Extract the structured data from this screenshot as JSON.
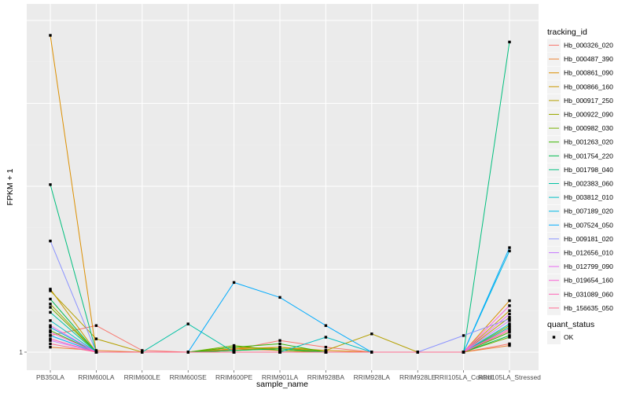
{
  "chart_data": {
    "type": "line",
    "xlabel": "sample_name",
    "ylabel": "FPKM + 1",
    "y_tick_labels": [
      "1"
    ],
    "ylim": [
      1,
      21
    ],
    "y_scale": "linear (only the value 1 is labeled)",
    "grid": true,
    "legend_position": "right",
    "categories": [
      "PB350LA",
      "RRIM600LA",
      "RRIM600LE",
      "RRIM600SE",
      "RRIM600PE",
      "RRIM901LA",
      "RRIM928BA",
      "RRIM928LA",
      "RRIM928LE",
      "RRII105LA_Control",
      "RRII105LA_Stressed"
    ],
    "legend_series_title": "tracking_id",
    "legend_shape_title": "quant_status",
    "legend_shape_entries": [
      "OK"
    ],
    "series": [
      {
        "name": "Hb_000326_020",
        "color": "#F8766D",
        "values": [
          2.0,
          2.6,
          1.1,
          1.0,
          1.15,
          1.7,
          1.3,
          1.0,
          1.0,
          1.0,
          1.5
        ]
      },
      {
        "name": "Hb_000487_390",
        "color": "#EB8335",
        "values": [
          1.3,
          1.1,
          1.0,
          1.0,
          1.2,
          1.1,
          1.0,
          1.0,
          1.0,
          1.0,
          1.4
        ]
      },
      {
        "name": "Hb_000861_090",
        "color": "#DC8F00",
        "values": [
          20.1,
          1.0,
          1.0,
          1.0,
          1.2,
          1.3,
          1.1,
          1.0,
          1.0,
          1.0,
          4.1
        ]
      },
      {
        "name": "Hb_000866_160",
        "color": "#C99800",
        "values": [
          4.8,
          1.0,
          1.0,
          1.0,
          1.1,
          1.3,
          1.0,
          1.0,
          1.0,
          1.0,
          3.5
        ]
      },
      {
        "name": "Hb_000917_250",
        "color": "#B4A000",
        "values": [
          4.7,
          1.8,
          1.0,
          1.0,
          1.3,
          1.2,
          1.1,
          2.1,
          1.0,
          1.0,
          3.1
        ]
      },
      {
        "name": "Hb_000922_090",
        "color": "#9AA800",
        "values": [
          3.9,
          1.0,
          1.0,
          1.0,
          1.1,
          1.2,
          1.0,
          1.0,
          1.0,
          1.0,
          2.6
        ]
      },
      {
        "name": "Hb_000982_030",
        "color": "#76AF00",
        "values": [
          3.7,
          1.0,
          1.0,
          1.0,
          1.4,
          1.1,
          1.0,
          1.0,
          1.0,
          1.0,
          1.9
        ]
      },
      {
        "name": "Hb_001263_020",
        "color": "#39B600",
        "values": [
          2.3,
          1.0,
          1.0,
          1.0,
          1.3,
          1.5,
          1.0,
          1.0,
          1.0,
          1.0,
          2.2
        ]
      },
      {
        "name": "Hb_001754_220",
        "color": "#00BB4E",
        "values": [
          4.2,
          1.0,
          1.0,
          1.0,
          1.1,
          1.2,
          1.0,
          1.0,
          1.0,
          1.0,
          2.0
        ]
      },
      {
        "name": "Hb_001798_040",
        "color": "#00BF7D",
        "values": [
          11.1,
          1.0,
          1.0,
          1.0,
          1.0,
          1.0,
          1.0,
          1.0,
          1.0,
          1.0,
          19.7
        ]
      },
      {
        "name": "Hb_002383_060",
        "color": "#00C1A3",
        "values": [
          3.4,
          1.0,
          1.0,
          2.7,
          1.0,
          1.0,
          1.0,
          1.0,
          1.0,
          1.0,
          2.5
        ]
      },
      {
        "name": "Hb_003812_010",
        "color": "#00BFC4",
        "values": [
          2.9,
          1.0,
          1.0,
          1.0,
          1.0,
          1.0,
          1.9,
          1.0,
          1.0,
          1.0,
          2.7
        ]
      },
      {
        "name": "Hb_007189_020",
        "color": "#00B8E5",
        "values": [
          2.5,
          1.0,
          1.0,
          1.0,
          1.0,
          1.0,
          1.0,
          1.0,
          1.0,
          1.0,
          7.1
        ]
      },
      {
        "name": "Hb_007524_050",
        "color": "#00ABFD",
        "values": [
          2.0,
          1.0,
          1.0,
          1.0,
          5.2,
          4.3,
          2.6,
          1.0,
          1.0,
          1.0,
          7.3
        ]
      },
      {
        "name": "Hb_009181_020",
        "color": "#8B93FF",
        "values": [
          7.7,
          1.0,
          1.0,
          1.0,
          1.0,
          1.0,
          1.0,
          1.0,
          1.0,
          2.0,
          3.0
        ]
      },
      {
        "name": "Hb_012656_010",
        "color": "#C77CFF",
        "values": [
          1.7,
          1.0,
          1.0,
          1.0,
          1.0,
          1.0,
          1.0,
          1.0,
          1.0,
          1.0,
          2.9
        ]
      },
      {
        "name": "Hb_012799_090",
        "color": "#E86BF3",
        "values": [
          2.6,
          1.0,
          1.0,
          1.0,
          1.0,
          1.0,
          1.0,
          1.0,
          1.0,
          1.0,
          3.3
        ]
      },
      {
        "name": "Hb_019654_160",
        "color": "#FA62D5",
        "values": [
          2.2,
          1.0,
          1.0,
          1.0,
          1.0,
          1.0,
          1.0,
          1.0,
          1.0,
          1.0,
          3.8
        ]
      },
      {
        "name": "Hb_031089_060",
        "color": "#FF63B6",
        "values": [
          1.8,
          1.0,
          1.0,
          1.0,
          1.0,
          1.0,
          1.0,
          1.0,
          1.0,
          1.0,
          2.4
        ]
      },
      {
        "name": "Hb_156635_050",
        "color": "#FF6C91",
        "values": [
          1.5,
          1.0,
          1.0,
          1.0,
          1.0,
          1.0,
          1.0,
          1.0,
          1.0,
          1.0,
          2.3
        ]
      }
    ]
  }
}
